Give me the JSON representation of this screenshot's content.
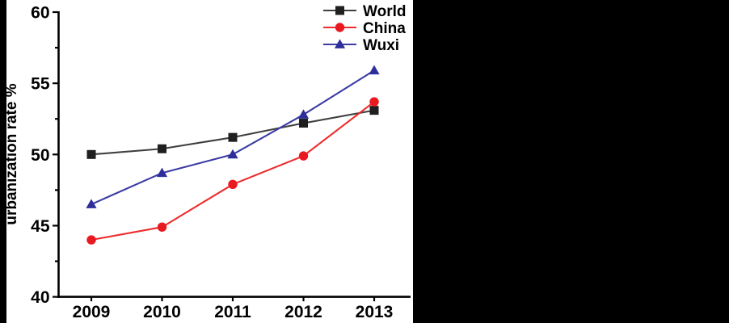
{
  "figure": {
    "background_color": "#ffffff",
    "side_bar_color": "#000000"
  },
  "chart_data": {
    "type": "line",
    "title": "",
    "xlabel": "",
    "ylabel": "urbanization rate %",
    "x": [
      2009,
      2010,
      2011,
      2012,
      2013
    ],
    "ylim": [
      40,
      60
    ],
    "y_major_ticks": [
      40,
      45,
      50,
      55,
      60
    ],
    "y_minor_ticks": [
      42.5,
      47.5,
      52.5,
      57.5
    ],
    "grid": false,
    "legend_position": "top-right",
    "series": [
      {
        "name": "World",
        "marker": "square",
        "marker_color": "#1f1f1f",
        "line_color": "#3f3f3f",
        "values": [
          50.0,
          50.4,
          51.2,
          52.2,
          53.1
        ]
      },
      {
        "name": "China",
        "marker": "circle",
        "marker_color": "#e8191f",
        "line_color": "#ee2d2d",
        "values": [
          44.0,
          44.9,
          47.9,
          49.9,
          53.7
        ]
      },
      {
        "name": "Wuxi",
        "marker": "triangle",
        "marker_color": "#2e2e9b",
        "line_color": "#3c3ca4",
        "values": [
          46.5,
          48.7,
          50.0,
          52.8,
          55.9
        ]
      }
    ]
  }
}
